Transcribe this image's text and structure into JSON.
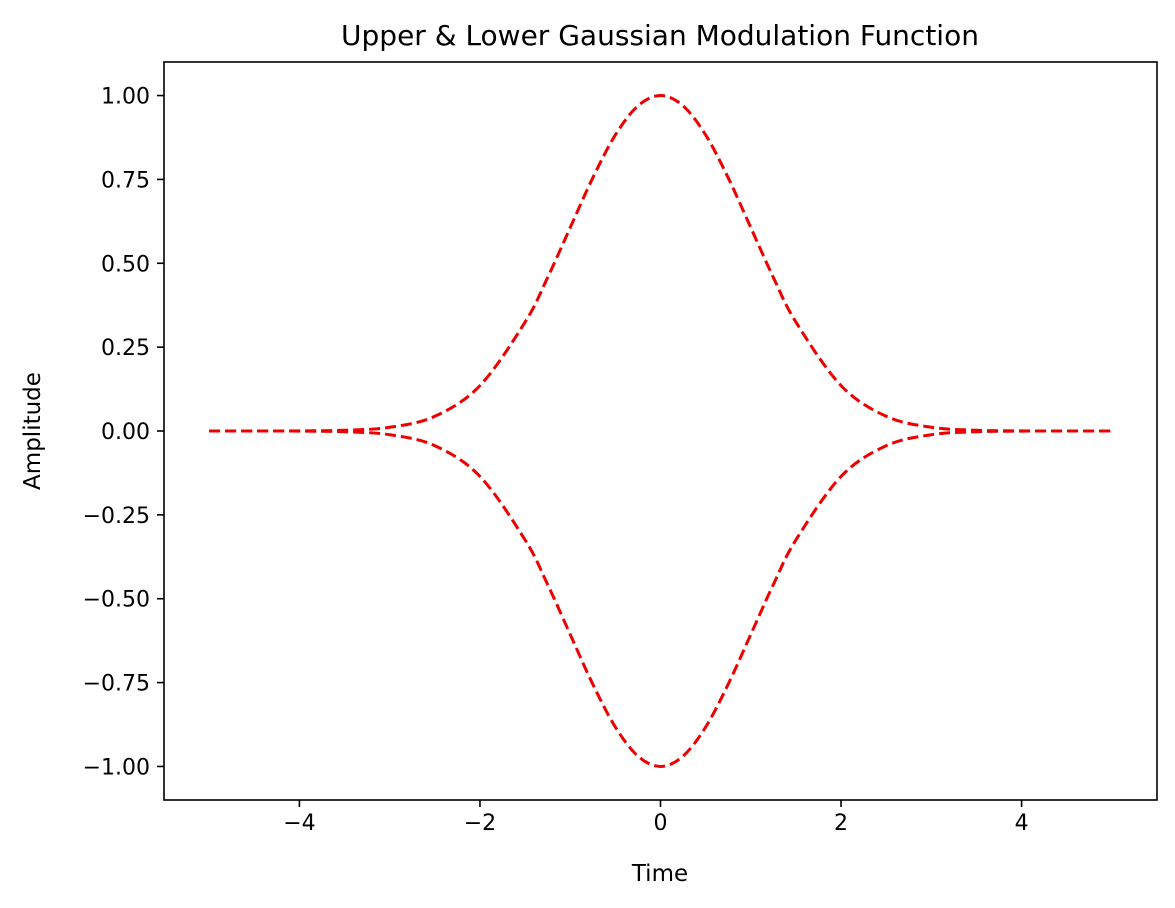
{
  "chart_data": {
    "type": "line",
    "title": "Upper & Lower Gaussian Modulation Function",
    "xlabel": "Time",
    "ylabel": "Amplitude",
    "xlim": [
      -5.5,
      5.5
    ],
    "ylim": [
      -1.1,
      1.1
    ],
    "xticks": [
      -4,
      -2,
      0,
      2,
      4
    ],
    "xtick_labels": [
      "−4",
      "−2",
      "0",
      "2",
      "4"
    ],
    "yticks": [
      1.0,
      0.75,
      0.5,
      0.25,
      0.0,
      -0.25,
      -0.5,
      -0.75,
      -1.0
    ],
    "ytick_labels": [
      "1.00",
      "0.75",
      "0.50",
      "0.25",
      "0.00",
      "−0.25",
      "−0.50",
      "−0.75",
      "−1.00"
    ],
    "grid": false,
    "line_style": "dashed",
    "line_color": "#ee0000",
    "x": [
      -5.0,
      -4.5,
      -4.0,
      -3.5,
      -3.0,
      -2.5,
      -2.0,
      -1.5,
      -1.25,
      -1.0,
      -0.75,
      -0.5,
      -0.25,
      0.0,
      0.25,
      0.5,
      0.75,
      1.0,
      1.25,
      1.5,
      2.0,
      2.5,
      3.0,
      3.5,
      4.0,
      4.5,
      5.0
    ],
    "series": [
      {
        "values": [
          0.0,
          0.0,
          0.0003,
          0.0022,
          0.0111,
          0.0439,
          0.1353,
          0.3247,
          0.4578,
          0.6065,
          0.7548,
          0.8825,
          0.9692,
          1.0,
          0.9692,
          0.8825,
          0.7548,
          0.6065,
          0.4578,
          0.3247,
          0.1353,
          0.0439,
          0.0111,
          0.0022,
          0.0003,
          0.0,
          0.0
        ]
      },
      {
        "values": [
          0.0,
          0.0,
          -0.0003,
          -0.0022,
          -0.0111,
          -0.0439,
          -0.1353,
          -0.3247,
          -0.4578,
          -0.6065,
          -0.7548,
          -0.8825,
          -0.9692,
          -1.0,
          -0.9692,
          -0.8825,
          -0.7548,
          -0.6065,
          -0.4578,
          -0.3247,
          -0.1353,
          -0.0439,
          -0.0111,
          -0.0022,
          -0.0003,
          0.0,
          0.0
        ]
      }
    ]
  }
}
